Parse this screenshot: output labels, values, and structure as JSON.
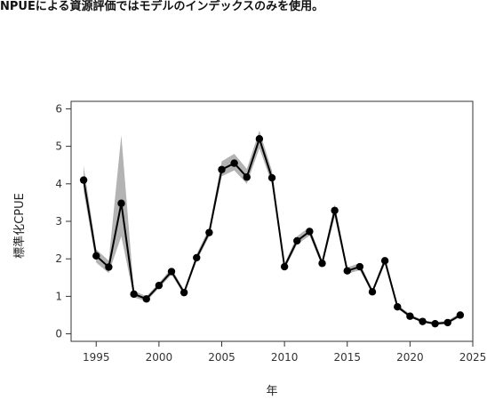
{
  "caption": "NPUEによる資源評価ではモデルのインデックスのみを使用。",
  "chart_data": {
    "type": "line",
    "title": "",
    "xlabel": "年",
    "ylabel": "標準化CPUE",
    "xlim": [
      1993,
      2025
    ],
    "ylim": [
      -0.2,
      6.2
    ],
    "xticks": [
      1995,
      2000,
      2005,
      2010,
      2015,
      2020,
      2025
    ],
    "yticks": [
      0,
      1,
      2,
      3,
      4,
      5,
      6
    ],
    "grid": false,
    "series": [
      {
        "x": [
          1994,
          1995,
          1996,
          1997,
          1998,
          1999,
          2000,
          2001,
          2002,
          2003,
          2004,
          2005,
          2006,
          2007,
          2008,
          2009,
          2010,
          2011,
          2012,
          2013,
          2014,
          2015,
          2016,
          2017,
          2018,
          2019,
          2020,
          2021,
          2022,
          2023,
          2024
        ],
        "values": [
          4.1,
          2.08,
          1.78,
          3.48,
          1.06,
          0.93,
          1.29,
          1.66,
          1.1,
          2.03,
          2.7,
          4.38,
          4.55,
          4.18,
          5.2,
          4.16,
          1.79,
          2.48,
          2.73,
          1.88,
          3.29,
          1.68,
          1.79,
          1.12,
          1.95,
          0.72,
          0.47,
          0.33,
          0.27,
          0.3,
          0.5
        ],
        "lower": [
          3.8,
          1.9,
          1.62,
          2.6,
          0.97,
          0.87,
          1.22,
          1.58,
          1.04,
          1.94,
          2.6,
          4.2,
          4.36,
          4.0,
          4.95,
          4.0,
          1.72,
          2.38,
          2.62,
          1.8,
          3.12,
          1.6,
          1.7,
          1.06,
          1.86,
          0.67,
          0.43,
          0.3,
          0.24,
          0.26,
          0.45
        ],
        "upper": [
          4.48,
          2.25,
          1.95,
          5.3,
          1.15,
          1.0,
          1.36,
          1.75,
          1.17,
          2.13,
          2.82,
          4.6,
          4.8,
          4.4,
          5.42,
          4.35,
          1.87,
          2.6,
          2.85,
          1.97,
          3.45,
          1.77,
          1.89,
          1.18,
          2.05,
          0.78,
          0.52,
          0.37,
          0.31,
          0.35,
          0.56
        ]
      }
    ],
    "colors": {
      "line": "#000000",
      "band": "#b3b3b3",
      "marker": "#000000"
    }
  }
}
